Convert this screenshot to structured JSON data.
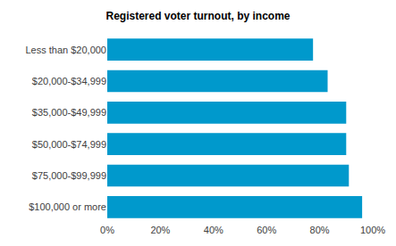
{
  "chart_data": {
    "type": "bar",
    "orientation": "horizontal",
    "title": "Registered voter turnout, by income",
    "categories": [
      "Less than $20,000",
      "$20,000-$34,999",
      "$35,000-$49,999",
      "$50,000-$74,999",
      "$75,000-$99,999",
      "$100,000 or more"
    ],
    "values": [
      77.5,
      83,
      90,
      90,
      91,
      96
    ],
    "color": "#0099cc",
    "xlim": [
      0,
      100
    ],
    "xticks": [
      {
        "value": 0,
        "label": "0%"
      },
      {
        "value": 20,
        "label": "20%"
      },
      {
        "value": 40,
        "label": "40%"
      },
      {
        "value": 60,
        "label": "60%"
      },
      {
        "value": 80,
        "label": "80%"
      },
      {
        "value": 100,
        "label": "100%"
      }
    ],
    "grid": false
  }
}
